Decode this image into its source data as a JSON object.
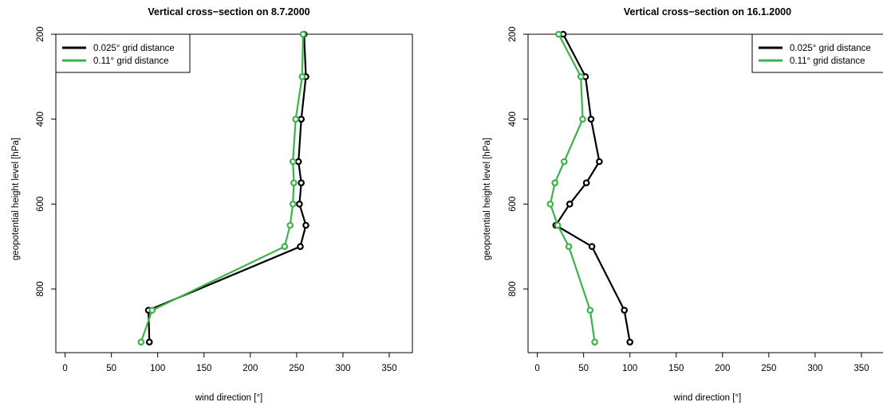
{
  "colors": {
    "series_a": "#000000",
    "series_b": "#3cb34a"
  },
  "chart_data": [
    {
      "type": "line",
      "title": "Vertical cross−section on 8.7.2000",
      "xlabel": "wind direction [°]",
      "ylabel": "geopotential height level [hPa]",
      "xlim": [
        -10,
        375
      ],
      "ylim": [
        200,
        950
      ],
      "y_reversed": true,
      "x_ticks": [
        0,
        50,
        100,
        150,
        200,
        250,
        300,
        350
      ],
      "x_tick_labels": [
        "0",
        "50",
        "100",
        "150",
        "200",
        "250",
        "300",
        "350"
      ],
      "y_ticks": [
        200,
        400,
        600,
        800
      ],
      "y_tick_labels": [
        "200",
        "400",
        "600",
        "800"
      ],
      "grid": false,
      "legend_position": "top-left",
      "series": [
        {
          "name": "0.025° grid distance",
          "color": "#000000",
          "y": [
            200,
            300,
            400,
            500,
            550,
            600,
            650,
            700,
            850,
            925
          ],
          "x": [
            258,
            260,
            255,
            252,
            255,
            253,
            260,
            254,
            90,
            91
          ]
        },
        {
          "name": "0.11° grid distance",
          "color": "#3cb34a",
          "y": [
            200,
            300,
            400,
            500,
            550,
            600,
            650,
            700,
            850,
            925
          ],
          "x": [
            257,
            256,
            249,
            246,
            247,
            246,
            243,
            237,
            94,
            82
          ]
        }
      ]
    },
    {
      "type": "line",
      "title": "Vertical cross−section on 16.1.2000",
      "xlabel": "wind direction [°]",
      "ylabel": "geopotential height level [hPa]",
      "xlim": [
        -10,
        375
      ],
      "ylim": [
        200,
        950
      ],
      "y_reversed": true,
      "x_ticks": [
        0,
        50,
        100,
        150,
        200,
        250,
        300,
        350
      ],
      "x_tick_labels": [
        "0",
        "50",
        "100",
        "150",
        "200",
        "250",
        "300",
        "350"
      ],
      "y_ticks": [
        200,
        400,
        600,
        800
      ],
      "y_tick_labels": [
        "200",
        "400",
        "600",
        "800"
      ],
      "grid": false,
      "legend_position": "top-right",
      "series": [
        {
          "name": "0.025° grid distance",
          "color": "#000000",
          "y": [
            200,
            300,
            400,
            500,
            550,
            600,
            650,
            700,
            850,
            925
          ],
          "x": [
            28,
            52,
            58,
            67,
            53,
            35,
            20,
            59,
            94,
            100
          ]
        },
        {
          "name": "0.11° grid distance",
          "color": "#3cb34a",
          "y": [
            200,
            300,
            400,
            500,
            550,
            600,
            650,
            700,
            850,
            925
          ],
          "x": [
            23,
            47,
            49,
            29,
            19,
            14,
            22,
            34,
            57,
            62
          ]
        }
      ]
    }
  ]
}
